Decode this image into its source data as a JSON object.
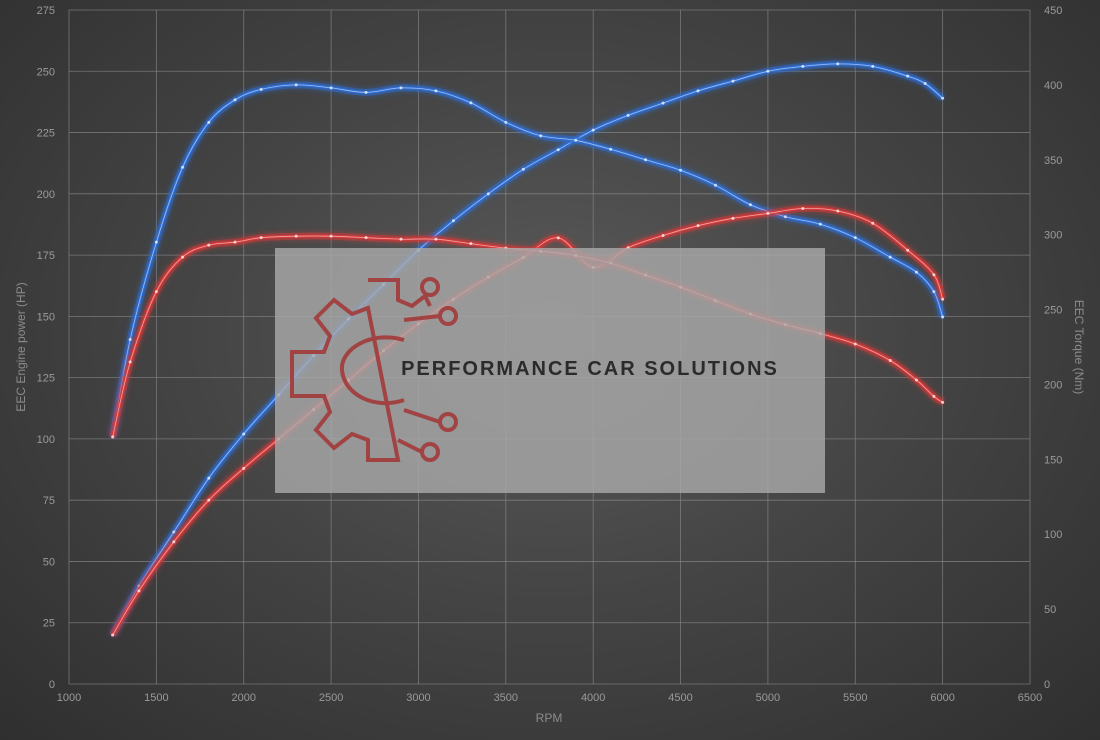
{
  "chart_data": {
    "type": "line",
    "xlabel": "RPM",
    "ylabel_left": "EEC Engine power (HP)",
    "ylabel_right": "EEC Torque (Nm)",
    "xlim": [
      1000,
      6500
    ],
    "ylim_left": [
      0,
      275
    ],
    "ylim_right": [
      0,
      450
    ],
    "x_ticks": [
      "1000",
      "1500",
      "2000",
      "2500",
      "3000",
      "3500",
      "4000",
      "4500",
      "5000",
      "5500",
      "6000",
      "6500"
    ],
    "y_left_ticks": [
      "0",
      "25",
      "50",
      "75",
      "100",
      "125",
      "150",
      "175",
      "200",
      "225",
      "250",
      "275"
    ],
    "y_right_ticks": [
      "0",
      "50",
      "100",
      "150",
      "200",
      "250",
      "300",
      "350",
      "400",
      "450"
    ],
    "grid": true,
    "series": [
      {
        "axis": "left",
        "color": "#2f6fd6",
        "x": [
          1250,
          1400,
          1600,
          1800,
          2000,
          2200,
          2400,
          2600,
          2800,
          3000,
          3200,
          3400,
          3600,
          3800,
          4000,
          4200,
          4400,
          4600,
          4800,
          5000,
          5200,
          5400,
          5600,
          5800,
          5900,
          6000
        ],
        "values": [
          20,
          40,
          62,
          84,
          102,
          118,
          134,
          149,
          163,
          177,
          189,
          200,
          210,
          218,
          226,
          232,
          237,
          242,
          246,
          250,
          252,
          253,
          252,
          248,
          245,
          239
        ]
      },
      {
        "axis": "right",
        "color": "#2f6fd6",
        "x": [
          1250,
          1350,
          1500,
          1650,
          1800,
          1950,
          2100,
          2300,
          2500,
          2700,
          2900,
          3100,
          3300,
          3500,
          3700,
          3900,
          4100,
          4300,
          4500,
          4700,
          4900,
          5100,
          5300,
          5500,
          5700,
          5850,
          5950,
          6000
        ],
        "values": [
          165,
          230,
          295,
          345,
          375,
          390,
          397,
          400,
          398,
          395,
          398,
          396,
          388,
          375,
          366,
          363,
          357,
          350,
          343,
          333,
          320,
          312,
          307,
          298,
          285,
          275,
          262,
          245
        ]
      },
      {
        "axis": "left",
        "color": "#d63a3a",
        "x": [
          1250,
          1400,
          1600,
          1800,
          2000,
          2200,
          2400,
          2600,
          2800,
          3000,
          3200,
          3400,
          3600,
          3800,
          4000,
          4200,
          4400,
          4600,
          4800,
          5000,
          5200,
          5400,
          5600,
          5800,
          5950,
          6000
        ],
        "values": [
          20,
          38,
          58,
          75,
          88,
          100,
          112,
          124,
          136,
          147,
          157,
          166,
          174,
          182,
          170,
          178,
          183,
          187,
          190,
          192,
          194,
          193,
          188,
          177,
          167,
          157
        ]
      },
      {
        "axis": "right",
        "color": "#d63a3a",
        "x": [
          1250,
          1350,
          1500,
          1650,
          1800,
          1950,
          2100,
          2300,
          2500,
          2700,
          2900,
          3100,
          3300,
          3500,
          3700,
          3900,
          4100,
          4300,
          4500,
          4700,
          4900,
          5100,
          5300,
          5500,
          5700,
          5850,
          5950,
          6000
        ],
        "values": [
          165,
          215,
          262,
          285,
          293,
          295,
          298,
          299,
          299,
          298,
          297,
          297,
          294,
          291,
          289,
          286,
          281,
          273,
          265,
          256,
          247,
          240,
          234,
          227,
          216,
          203,
          192,
          188
        ]
      }
    ]
  },
  "watermark": {
    "text": "PERFORMANCE CAR SOLUTIONS",
    "logo": "gear-circuit-logo",
    "logo_color": "#a33a3a"
  }
}
